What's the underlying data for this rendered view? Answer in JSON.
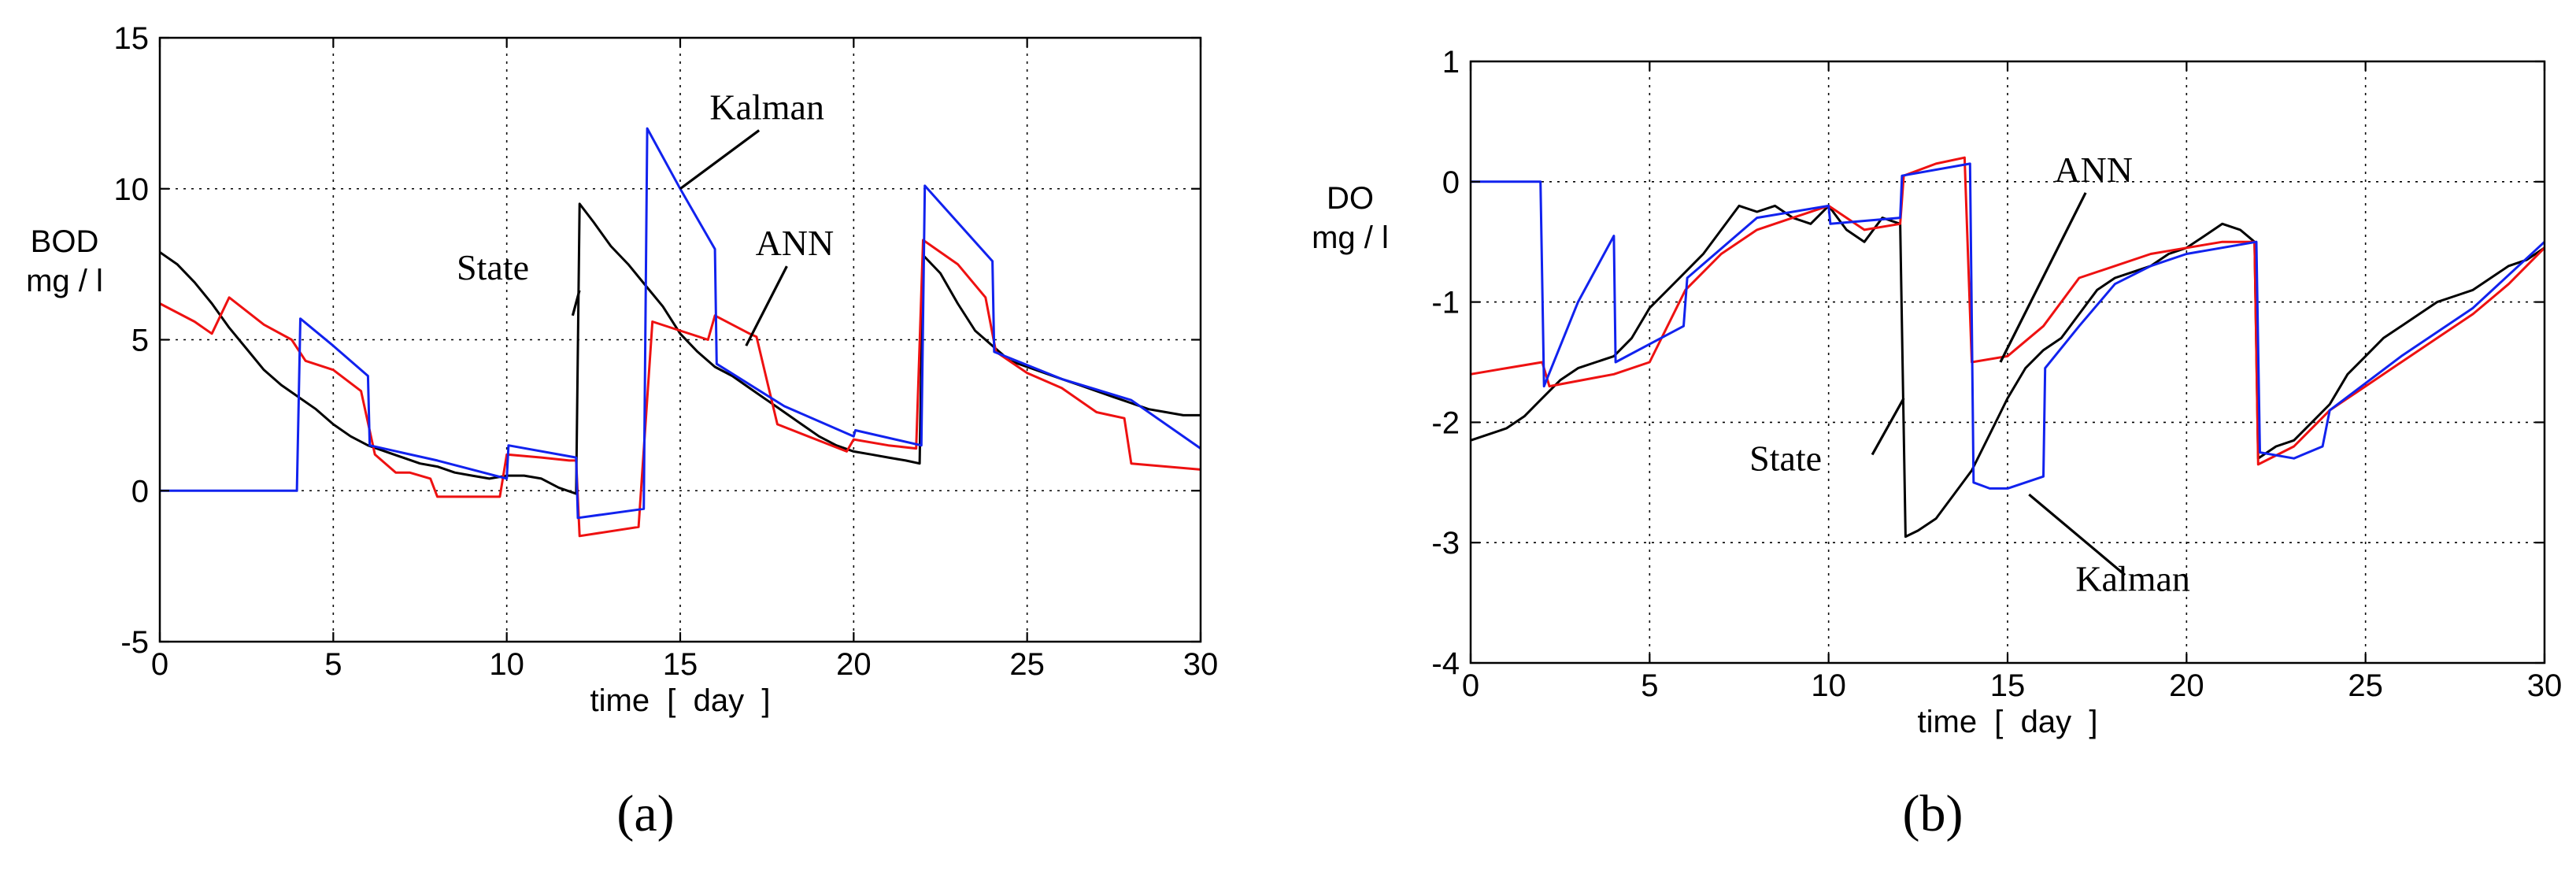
{
  "chart_data": [
    {
      "type": "line",
      "panel_label": "(a)",
      "xlabel": "time  [  day  ]",
      "ylabel_lines": [
        "BOD",
        "mg / l"
      ],
      "xlim": [
        0,
        30
      ],
      "ylim": [
        -5,
        15
      ],
      "xticks": [
        0,
        5,
        10,
        15,
        20,
        25,
        30
      ],
      "yticks": [
        -5,
        0,
        5,
        10,
        15
      ],
      "grid": true,
      "annotations": [
        {
          "text": "Kalman",
          "x": 17.5,
          "y": 12.3,
          "tip": [
            15.0,
            10.0
          ]
        },
        {
          "text": "State",
          "x": 9.6,
          "y": 7.0,
          "tip": [
            11.9,
            5.8
          ]
        },
        {
          "text": "ANN",
          "x": 18.3,
          "y": 7.8,
          "tip": [
            16.9,
            4.8
          ]
        }
      ],
      "series": [
        {
          "name": "State",
          "color": "#000000",
          "x": [
            0,
            0.5,
            1,
            1.5,
            2,
            2.5,
            3,
            3.5,
            4,
            4.5,
            5,
            5.5,
            6,
            6.5,
            7,
            7.5,
            8,
            8.5,
            9,
            9.5,
            10,
            10.5,
            11,
            11.5,
            12,
            12.1,
            12.5,
            13,
            13.5,
            14,
            14.5,
            15,
            15.5,
            16,
            16.5,
            17,
            17.5,
            18,
            18.5,
            19,
            19.5,
            20,
            20.5,
            21,
            21.5,
            21.9,
            22,
            22.5,
            23,
            23.5,
            24,
            24.5,
            25,
            25.5,
            26,
            26.5,
            27,
            27.5,
            28,
            28.5,
            29,
            29.5,
            30
          ],
          "y": [
            7.9,
            7.5,
            6.9,
            6.2,
            5.4,
            4.7,
            4.0,
            3.5,
            3.1,
            2.7,
            2.2,
            1.8,
            1.5,
            1.3,
            1.1,
            0.9,
            0.8,
            0.6,
            0.5,
            0.4,
            0.5,
            0.5,
            0.4,
            0.1,
            -0.1,
            9.5,
            8.9,
            8.1,
            7.5,
            6.8,
            6.1,
            5.2,
            4.6,
            4.1,
            3.8,
            3.4,
            3.0,
            2.6,
            2.2,
            1.8,
            1.5,
            1.3,
            1.2,
            1.1,
            1.0,
            0.9,
            7.8,
            7.2,
            6.2,
            5.3,
            4.8,
            4.3,
            4.1,
            3.9,
            3.7,
            3.5,
            3.3,
            3.1,
            2.9,
            2.7,
            2.6,
            2.5,
            2.5
          ]
        },
        {
          "name": "ANN",
          "color": "#ee1111",
          "x": [
            0,
            1,
            1.5,
            2,
            3,
            3.8,
            4.2,
            5,
            5.8,
            6.2,
            6.8,
            7.2,
            7.8,
            8,
            9.8,
            10,
            11,
            11.8,
            12,
            12.1,
            13.8,
            14.2,
            15,
            15.8,
            16,
            17,
            17.2,
            17.8,
            19.8,
            20,
            21,
            21.8,
            22,
            23,
            23.8,
            24.1,
            25,
            26,
            27,
            27.4,
            27.8,
            28,
            30
          ],
          "y": [
            6.2,
            5.6,
            5.2,
            6.4,
            5.5,
            5.0,
            4.3,
            4.0,
            3.3,
            1.2,
            0.6,
            0.6,
            0.4,
            -0.2,
            -0.2,
            1.2,
            1.1,
            1.0,
            1.0,
            -1.5,
            -1.2,
            5.6,
            5.3,
            5.0,
            5.8,
            5.2,
            5.1,
            2.2,
            1.3,
            1.7,
            1.5,
            1.4,
            8.3,
            7.5,
            6.4,
            4.6,
            3.9,
            3.4,
            2.6,
            2.5,
            2.4,
            0.9,
            0.7
          ]
        },
        {
          "name": "Kalman",
          "color": "#1122ee",
          "x": [
            0,
            3.95,
            4.05,
            5,
            6,
            6.05,
            8,
            10,
            10.05,
            12,
            12.05,
            13.95,
            14.05,
            15,
            16,
            16.05,
            18,
            20,
            20.05,
            21.95,
            22.05,
            24,
            24.05,
            26,
            28,
            30
          ],
          "y": [
            0,
            0,
            5.7,
            4.8,
            3.8,
            1.5,
            1.0,
            0.4,
            1.5,
            1.1,
            -0.9,
            -0.6,
            12.0,
            10.0,
            8.0,
            4.2,
            2.8,
            1.8,
            2.0,
            1.5,
            10.1,
            7.6,
            4.6,
            3.7,
            3.0,
            1.4
          ]
        }
      ]
    },
    {
      "type": "line",
      "panel_label": "(b)",
      "xlabel": "time  [  day  ]",
      "ylabel_lines": [
        "DO",
        "mg / l"
      ],
      "xlim": [
        0,
        30
      ],
      "ylim": [
        -4,
        1
      ],
      "xticks": [
        0,
        5,
        10,
        15,
        20,
        25,
        30
      ],
      "yticks": [
        -4,
        -3,
        -2,
        -1,
        0,
        1
      ],
      "grid": true,
      "annotations": [
        {
          "text": "ANN",
          "x": 17.4,
          "y": 0.0,
          "tip": [
            14.8,
            -1.5
          ]
        },
        {
          "text": "State",
          "x": 8.8,
          "y": -2.4,
          "tip": [
            12.1,
            -1.8
          ]
        },
        {
          "text": "Kalman",
          "x": 18.5,
          "y": -3.4,
          "tip": [
            15.6,
            -2.6
          ]
        }
      ],
      "series": [
        {
          "name": "State",
          "color": "#000000",
          "x": [
            0,
            0.5,
            1,
            1.5,
            2,
            2.5,
            3,
            3.5,
            4,
            4.5,
            5,
            5.5,
            6,
            6.5,
            7,
            7.5,
            8,
            8.5,
            9,
            9.5,
            10,
            10.5,
            11,
            11.5,
            12,
            12.15,
            12.5,
            13,
            13.5,
            14,
            14.5,
            15,
            15.5,
            16,
            16.5,
            17,
            17.5,
            18,
            18.5,
            19,
            19.5,
            20,
            20.5,
            21,
            21.5,
            21.9,
            22,
            22.5,
            23,
            23.5,
            24,
            24.5,
            25,
            25.5,
            26,
            26.5,
            27,
            27.5,
            28,
            28.5,
            29,
            29.5,
            30
          ],
          "y": [
            -2.15,
            -2.1,
            -2.05,
            -1.95,
            -1.8,
            -1.65,
            -1.55,
            -1.5,
            -1.45,
            -1.3,
            -1.05,
            -0.9,
            -0.75,
            -0.6,
            -0.4,
            -0.2,
            -0.25,
            -0.2,
            -0.3,
            -0.35,
            -0.2,
            -0.4,
            -0.5,
            -0.3,
            -0.35,
            -2.95,
            -2.9,
            -2.8,
            -2.6,
            -2.4,
            -2.1,
            -1.8,
            -1.55,
            -1.4,
            -1.3,
            -1.1,
            -0.9,
            -0.8,
            -0.75,
            -0.7,
            -0.6,
            -0.55,
            -0.45,
            -0.35,
            -0.4,
            -0.5,
            -2.3,
            -2.2,
            -2.15,
            -2.0,
            -1.85,
            -1.6,
            -1.45,
            -1.3,
            -1.2,
            -1.1,
            -1.0,
            -0.95,
            -0.9,
            -0.8,
            -0.7,
            -0.65,
            -0.55
          ]
        },
        {
          "name": "ANN",
          "color": "#ee1111",
          "x": [
            0,
            1,
            2,
            2.2,
            4,
            5,
            6,
            7,
            8,
            9,
            10,
            11,
            12,
            12.1,
            13,
            13.8,
            14,
            15,
            15.2,
            16,
            17,
            18,
            19,
            20,
            21,
            21.9,
            22,
            23,
            24,
            25,
            26,
            27,
            28,
            29,
            30
          ],
          "y": [
            -1.6,
            -1.55,
            -1.5,
            -1.7,
            -1.6,
            -1.5,
            -0.9,
            -0.6,
            -0.4,
            -0.3,
            -0.2,
            -0.4,
            -0.35,
            0.05,
            0.15,
            0.2,
            -1.5,
            -1.45,
            -1.4,
            -1.2,
            -0.8,
            -0.7,
            -0.6,
            -0.55,
            -0.5,
            -0.5,
            -2.35,
            -2.2,
            -1.9,
            -1.7,
            -1.5,
            -1.3,
            -1.1,
            -0.85,
            -0.55
          ]
        },
        {
          "name": "Kalman",
          "color": "#1122ee",
          "x": [
            0,
            1.95,
            2.05,
            3,
            4,
            4.05,
            5,
            5.95,
            6.05,
            8,
            10,
            10.05,
            12,
            12.05,
            13.95,
            14.05,
            14.5,
            15,
            16,
            16.05,
            17,
            18,
            19,
            20,
            21.95,
            22.05,
            23,
            23.8,
            24,
            26,
            28,
            30
          ],
          "y": [
            0,
            0,
            -1.7,
            -1.0,
            -0.45,
            -1.5,
            -1.35,
            -1.2,
            -0.8,
            -0.3,
            -0.2,
            -0.35,
            -0.3,
            0.05,
            0.15,
            -2.5,
            -2.55,
            -2.55,
            -2.45,
            -1.55,
            -1.2,
            -0.85,
            -0.7,
            -0.6,
            -0.5,
            -2.25,
            -2.3,
            -2.2,
            -1.9,
            -1.45,
            -1.05,
            -0.5
          ]
        }
      ]
    }
  ]
}
